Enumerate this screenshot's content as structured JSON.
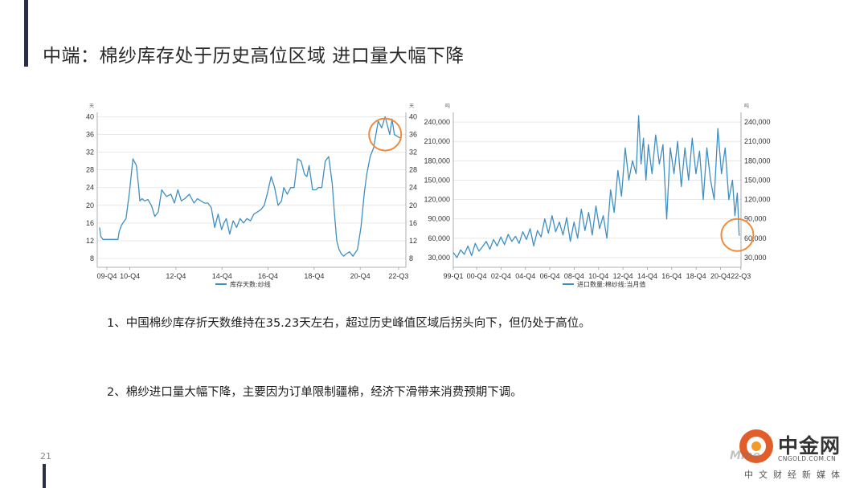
{
  "header": {
    "title": "中端：棉纱库存处于历史高位区域 进口量大幅下降",
    "page_number": "21"
  },
  "chart_data": [
    {
      "type": "line",
      "title": "",
      "ylabel_left": "天",
      "ylabel_right": "天",
      "ylim": [
        6,
        41
      ],
      "yticks": [
        8,
        12,
        16,
        20,
        24,
        28,
        32,
        36,
        40
      ],
      "y_tick_labels": [
        "8",
        "12",
        "16",
        "20",
        "24",
        "28",
        "32",
        "36",
        "40"
      ],
      "x_tick_labels": [
        "09-Q4",
        "10-Q4",
        "12-Q4",
        "14-Q4",
        "16-Q4",
        "18-Q4",
        "20-Q4",
        "22-Q3"
      ],
      "x_ticks": [
        2009.917,
        2010.917,
        2012.917,
        2014.917,
        2016.917,
        2018.917,
        2020.917,
        2022.583
      ],
      "xlim": [
        2009.5,
        2022.9
      ],
      "grid": "horizontal",
      "legend_position": "bottom",
      "highlight_circle": {
        "x": 2022.0,
        "y": 36
      },
      "series": [
        {
          "name": "库存天数:纱线",
          "color": "#3f8fc2",
          "x": [
            2009.6,
            2009.65,
            2009.75,
            2010.4,
            2010.45,
            2010.55,
            2010.75,
            2010.9,
            2011.05,
            2011.2,
            2011.3,
            2011.35,
            2011.45,
            2011.55,
            2011.7,
            2011.85,
            2012.0,
            2012.15,
            2012.3,
            2012.5,
            2012.7,
            2012.85,
            2013.0,
            2013.15,
            2013.3,
            2013.5,
            2013.7,
            2013.85,
            2014.0,
            2014.15,
            2014.3,
            2014.45,
            2014.6,
            2014.75,
            2014.9,
            2015.0,
            2015.1,
            2015.25,
            2015.4,
            2015.55,
            2015.7,
            2015.85,
            2016.0,
            2016.15,
            2016.3,
            2016.45,
            2016.6,
            2016.75,
            2016.9,
            2017.05,
            2017.2,
            2017.35,
            2017.5,
            2017.6,
            2017.75,
            2017.9,
            2018.05,
            2018.2,
            2018.35,
            2018.5,
            2018.6,
            2018.7,
            2018.85,
            2019.0,
            2019.1,
            2019.25,
            2019.4,
            2019.55,
            2019.7,
            2019.8,
            2019.9,
            2020.0,
            2020.1,
            2020.2,
            2020.3,
            2020.45,
            2020.6,
            2020.8,
            2020.95,
            2021.1,
            2021.2,
            2021.35,
            2021.5,
            2021.7,
            2021.85,
            2022.0,
            2022.1,
            2022.2,
            2022.3,
            2022.4,
            2022.55,
            2022.65
          ],
          "y": [
            15,
            13,
            12.3,
            12.3,
            14,
            15.5,
            17,
            23,
            30.5,
            29,
            24,
            21,
            21.5,
            21,
            21.3,
            20,
            17.5,
            18.5,
            23.5,
            22,
            22.5,
            20.5,
            23.5,
            21,
            21.5,
            22.5,
            20.5,
            21.5,
            21,
            20.5,
            20.5,
            19.5,
            15,
            18,
            14.5,
            16,
            17,
            13.5,
            16.5,
            15,
            17,
            16,
            17,
            16.5,
            18,
            18.5,
            19,
            20,
            23,
            26.5,
            24,
            20,
            21,
            24,
            22.5,
            24,
            24,
            30.5,
            30,
            27,
            26.5,
            29,
            23.5,
            23.5,
            24,
            24,
            30,
            31,
            25,
            18,
            12,
            10,
            9,
            8.5,
            9,
            9.5,
            8.5,
            10,
            15,
            23,
            27,
            31,
            33,
            39,
            37.5,
            40,
            38,
            36,
            39.5,
            36,
            35.5,
            35.23
          ]
        }
      ]
    },
    {
      "type": "line",
      "title": "",
      "ylabel_left": "吨",
      "ylabel_right": "吨",
      "ylim": [
        15000,
        255000
      ],
      "yticks": [
        30000,
        60000,
        90000,
        120000,
        150000,
        180000,
        210000,
        240000
      ],
      "y_tick_labels": [
        "30,000",
        "60,000",
        "90,000",
        "120,000",
        "150,000",
        "180,000",
        "210,000",
        "240,000"
      ],
      "x_tick_labels": [
        "99-Q1",
        "00-Q4",
        "02-Q4",
        "04-Q4",
        "06-Q4",
        "08-Q4",
        "10-Q4",
        "12-Q4",
        "14-Q4",
        "16-Q4",
        "18-Q4",
        "20-Q4",
        "22-Q3"
      ],
      "x_ticks": [
        1999.0,
        2000.917,
        2002.917,
        2004.917,
        2006.917,
        2008.917,
        2010.917,
        2012.917,
        2014.917,
        2016.917,
        2018.917,
        2020.917,
        2022.583
      ],
      "xlim": [
        1999.0,
        2022.6
      ],
      "grid": "horizontal",
      "legend_position": "bottom",
      "highlight_circle": {
        "x": 2022.3,
        "y": 65000
      },
      "series": [
        {
          "name": "进口数量:棉纱线:当月值",
          "color": "#3f8fc2",
          "x": [
            1999.0,
            1999.3,
            1999.6,
            1999.9,
            2000.2,
            2000.5,
            2000.8,
            2001.1,
            2001.4,
            2001.7,
            2002.0,
            2002.3,
            2002.6,
            2002.9,
            2003.2,
            2003.5,
            2003.8,
            2004.1,
            2004.4,
            2004.7,
            2005.0,
            2005.3,
            2005.6,
            2005.9,
            2006.2,
            2006.5,
            2006.8,
            2007.1,
            2007.4,
            2007.7,
            2008.0,
            2008.3,
            2008.6,
            2008.9,
            2009.2,
            2009.5,
            2009.8,
            2010.1,
            2010.4,
            2010.7,
            2011.0,
            2011.3,
            2011.6,
            2011.9,
            2012.2,
            2012.5,
            2012.8,
            2013.1,
            2013.4,
            2013.7,
            2014.0,
            2014.2,
            2014.4,
            2014.6,
            2014.8,
            2015.0,
            2015.3,
            2015.6,
            2015.9,
            2016.2,
            2016.5,
            2016.8,
            2017.1,
            2017.4,
            2017.7,
            2018.0,
            2018.3,
            2018.6,
            2018.9,
            2019.2,
            2019.5,
            2019.8,
            2020.1,
            2020.4,
            2020.7,
            2021.0,
            2021.3,
            2021.6,
            2021.9,
            2022.1,
            2022.3,
            2022.45
          ],
          "y": [
            38000,
            30000,
            42000,
            35000,
            48000,
            33000,
            52000,
            40000,
            47000,
            55000,
            43000,
            58000,
            48000,
            62000,
            50000,
            66000,
            55000,
            63000,
            52000,
            70000,
            58000,
            75000,
            48000,
            72000,
            62000,
            90000,
            68000,
            95000,
            70000,
            85000,
            65000,
            92000,
            55000,
            85000,
            60000,
            105000,
            72000,
            100000,
            65000,
            110000,
            75000,
            95000,
            60000,
            135000,
            100000,
            165000,
            125000,
            200000,
            150000,
            180000,
            160000,
            250000,
            175000,
            215000,
            150000,
            205000,
            160000,
            220000,
            175000,
            205000,
            90000,
            200000,
            160000,
            210000,
            140000,
            200000,
            150000,
            215000,
            160000,
            195000,
            120000,
            200000,
            150000,
            120000,
            230000,
            160000,
            200000,
            120000,
            150000,
            95000,
            130000,
            64000
          ]
        }
      ]
    }
  ],
  "notes": [
    {
      "text": "1、中国棉纱库存折天数维持在35.23天左右，超过历史峰值区域后拐头向下，但仍处于高位。"
    },
    {
      "text": "2、棉纱进口量大幅下降，主要因为订单限制疆棉，经济下滑带来消费预期下调。"
    }
  ],
  "logo": {
    "name": "中金网",
    "url": "CNGOLD.COM.CN",
    "tagline": "中文财经新媒体",
    "watermark": "Mme"
  },
  "colors": {
    "line": "#3f8fc2",
    "highlight": "#ef8a3c",
    "accent": "#2b2f45",
    "logo_orange": "#e35d2a"
  }
}
